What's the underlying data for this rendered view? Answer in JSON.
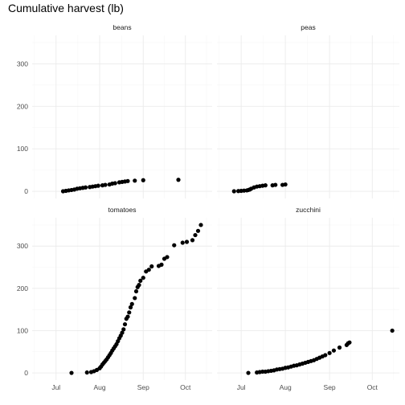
{
  "chart_data": {
    "type": "scatter",
    "title": "Cumulative harvest (lb)",
    "xlabel": "",
    "ylabel": "",
    "facet_layout": "2x2",
    "shared_axes": true,
    "x_unit": "date",
    "x_ticks": [
      "2020-07-01",
      "2020-08-01",
      "2020-09-01",
      "2020-10-01"
    ],
    "x_tick_labels": [
      "Jul",
      "Aug",
      "Sep",
      "Oct"
    ],
    "xlim": [
      "2020-06-14",
      "2020-10-20"
    ],
    "y_ticks": [
      0,
      100,
      200,
      300
    ],
    "y_tick_labels": [
      "0",
      "100",
      "200",
      "300"
    ],
    "ylim": [
      -17,
      367
    ],
    "grid": true,
    "legend": "none",
    "point_color": "#000000",
    "facets": [
      {
        "name": "beans",
        "points": [
          [
            "2020-07-06",
            0
          ],
          [
            "2020-07-08",
            1
          ],
          [
            "2020-07-10",
            2
          ],
          [
            "2020-07-12",
            3
          ],
          [
            "2020-07-14",
            4
          ],
          [
            "2020-07-16",
            6
          ],
          [
            "2020-07-18",
            7
          ],
          [
            "2020-07-20",
            8
          ],
          [
            "2020-07-22",
            9
          ],
          [
            "2020-07-25",
            10
          ],
          [
            "2020-07-27",
            11
          ],
          [
            "2020-07-29",
            12
          ],
          [
            "2020-07-31",
            13
          ],
          [
            "2020-08-03",
            14
          ],
          [
            "2020-08-05",
            15
          ],
          [
            "2020-08-08",
            16
          ],
          [
            "2020-08-10",
            18
          ],
          [
            "2020-08-12",
            19
          ],
          [
            "2020-08-15",
            21
          ],
          [
            "2020-08-17",
            22
          ],
          [
            "2020-08-19",
            23
          ],
          [
            "2020-08-21",
            24
          ],
          [
            "2020-08-26",
            25
          ],
          [
            "2020-09-01",
            26
          ],
          [
            "2020-09-26",
            27
          ]
        ]
      },
      {
        "name": "peas",
        "points": [
          [
            "2020-06-26",
            0
          ],
          [
            "2020-06-29",
            0.5
          ],
          [
            "2020-07-01",
            1
          ],
          [
            "2020-07-03",
            1.5
          ],
          [
            "2020-07-05",
            2
          ],
          [
            "2020-07-06",
            3
          ],
          [
            "2020-07-07",
            4
          ],
          [
            "2020-07-08",
            6
          ],
          [
            "2020-07-10",
            9
          ],
          [
            "2020-07-12",
            11
          ],
          [
            "2020-07-14",
            12
          ],
          [
            "2020-07-16",
            13
          ],
          [
            "2020-07-18",
            14
          ],
          [
            "2020-07-23",
            14
          ],
          [
            "2020-07-25",
            15
          ],
          [
            "2020-07-30",
            15
          ],
          [
            "2020-08-01",
            16
          ]
        ]
      },
      {
        "name": "tomatoes",
        "points": [
          [
            "2020-07-12",
            0
          ],
          [
            "2020-07-23",
            1
          ],
          [
            "2020-07-26",
            2
          ],
          [
            "2020-07-28",
            4
          ],
          [
            "2020-07-30",
            7
          ],
          [
            "2020-08-01",
            11
          ],
          [
            "2020-08-02",
            15
          ],
          [
            "2020-08-03",
            20
          ],
          [
            "2020-08-04",
            24
          ],
          [
            "2020-08-05",
            28
          ],
          [
            "2020-08-06",
            32
          ],
          [
            "2020-08-07",
            37
          ],
          [
            "2020-08-08",
            42
          ],
          [
            "2020-08-09",
            47
          ],
          [
            "2020-08-10",
            53
          ],
          [
            "2020-08-11",
            58
          ],
          [
            "2020-08-12",
            63
          ],
          [
            "2020-08-13",
            68
          ],
          [
            "2020-08-14",
            75
          ],
          [
            "2020-08-15",
            82
          ],
          [
            "2020-08-16",
            88
          ],
          [
            "2020-08-17",
            95
          ],
          [
            "2020-08-18",
            103
          ],
          [
            "2020-08-19",
            115
          ],
          [
            "2020-08-20",
            128
          ],
          [
            "2020-08-21",
            133
          ],
          [
            "2020-08-22",
            143
          ],
          [
            "2020-08-23",
            155
          ],
          [
            "2020-08-24",
            163
          ],
          [
            "2020-08-26",
            177
          ],
          [
            "2020-08-27",
            193
          ],
          [
            "2020-08-28",
            203
          ],
          [
            "2020-08-29",
            208
          ],
          [
            "2020-08-30",
            218
          ],
          [
            "2020-09-01",
            225
          ],
          [
            "2020-09-03",
            240
          ],
          [
            "2020-09-05",
            244
          ],
          [
            "2020-09-07",
            252
          ],
          [
            "2020-09-12",
            253
          ],
          [
            "2020-09-14",
            256
          ],
          [
            "2020-09-16",
            270
          ],
          [
            "2020-09-18",
            274
          ],
          [
            "2020-09-23",
            302
          ],
          [
            "2020-09-29",
            308
          ],
          [
            "2020-10-02",
            310
          ],
          [
            "2020-10-06",
            314
          ],
          [
            "2020-10-08",
            326
          ],
          [
            "2020-10-10",
            336
          ],
          [
            "2020-10-12",
            350
          ]
        ]
      },
      {
        "name": "zucchini",
        "points": [
          [
            "2020-07-06",
            0
          ],
          [
            "2020-07-12",
            1
          ],
          [
            "2020-07-14",
            2
          ],
          [
            "2020-07-16",
            3
          ],
          [
            "2020-07-18",
            3
          ],
          [
            "2020-07-20",
            4
          ],
          [
            "2020-07-22",
            5
          ],
          [
            "2020-07-24",
            6
          ],
          [
            "2020-07-26",
            8
          ],
          [
            "2020-07-28",
            9
          ],
          [
            "2020-07-30",
            10
          ],
          [
            "2020-08-01",
            12
          ],
          [
            "2020-08-03",
            13
          ],
          [
            "2020-08-05",
            15
          ],
          [
            "2020-08-07",
            17
          ],
          [
            "2020-08-09",
            18
          ],
          [
            "2020-08-11",
            20
          ],
          [
            "2020-08-13",
            22
          ],
          [
            "2020-08-15",
            24
          ],
          [
            "2020-08-17",
            26
          ],
          [
            "2020-08-19",
            28
          ],
          [
            "2020-08-21",
            30
          ],
          [
            "2020-08-23",
            33
          ],
          [
            "2020-08-25",
            36
          ],
          [
            "2020-08-27",
            39
          ],
          [
            "2020-08-29",
            42
          ],
          [
            "2020-09-01",
            47
          ],
          [
            "2020-09-04",
            53
          ],
          [
            "2020-09-08",
            60
          ],
          [
            "2020-09-13",
            66
          ],
          [
            "2020-09-14",
            70
          ],
          [
            "2020-09-15",
            72
          ],
          [
            "2020-10-15",
            100
          ]
        ]
      }
    ]
  }
}
